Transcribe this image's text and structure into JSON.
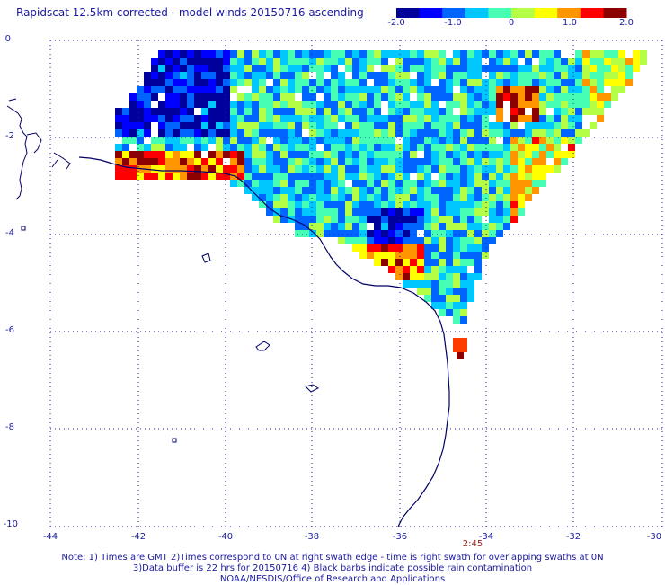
{
  "title": "Rapidscat 12.5km corrected - model winds 20150716 ascending",
  "colorbar": {
    "ticks": [
      "-2.0",
      "-1.0",
      "0",
      "1.0",
      "2.0"
    ],
    "tick_values": [
      -2.0,
      -1.0,
      0,
      1.0,
      2.0
    ],
    "colors": [
      "#00009a",
      "#0000ff",
      "#0064ff",
      "#00c8ff",
      "#46ffb4",
      "#b4ff46",
      "#ffff00",
      "#ff9600",
      "#ff0000",
      "#8c0000"
    ]
  },
  "axes": {
    "lat_labels": [
      "0",
      "-2",
      "-4",
      "-6",
      "-8",
      "-10"
    ],
    "lon_labels": [
      "-44",
      "-42",
      "-40",
      "-38",
      "-36",
      "-34",
      "-32",
      "-30"
    ],
    "lat_range": [
      0,
      -10
    ],
    "lon_range": [
      -45,
      -30
    ],
    "grid": "dotted"
  },
  "time_marker": "2:45",
  "notes": [
    "Note: 1) Times are GMT 2)Times correspond to 0N at right swath edge - time is right swath for overlapping swaths at 0N",
    "3)Data buffer is 22 hrs for 20150716 4) Black barbs indicate possible rain contamination",
    "NOAA/NESDIS/Office of Research and Applications"
  ],
  "colors": {
    "text": "#1a1aa0",
    "coast": "#000066",
    "time": "#a02020"
  }
}
